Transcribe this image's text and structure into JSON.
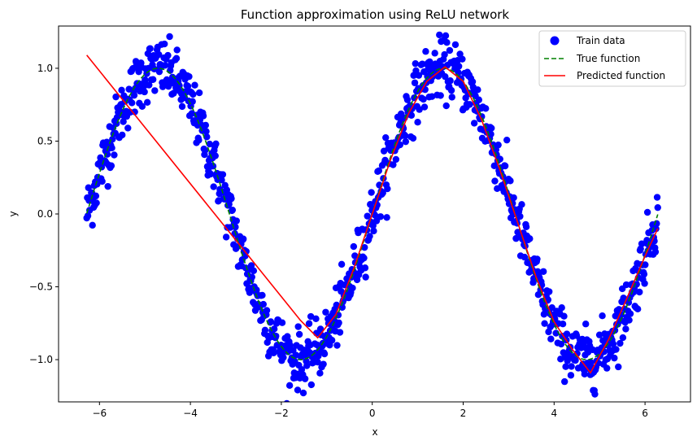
{
  "chart_data": {
    "type": "scatter",
    "title": "Function approximation using ReLU network",
    "xlabel": "x",
    "ylabel": "y",
    "xlim": [
      -6.9,
      7.0
    ],
    "ylim": [
      -1.29,
      1.29
    ],
    "xticks": [
      -6,
      -4,
      -2,
      0,
      2,
      4,
      6
    ],
    "xtick_labels": [
      "−6",
      "−4",
      "−2",
      "0",
      "2",
      "4",
      "6"
    ],
    "yticks": [
      -1.0,
      -0.5,
      0.0,
      0.5,
      1.0
    ],
    "ytick_labels": [
      "−1.0",
      "−0.5",
      "0.0",
      "0.5",
      "1.0"
    ],
    "grid": false,
    "legend_position": "top-right",
    "colors": {
      "train": "#0000ff",
      "true": "#008000",
      "pred": "#ff0000"
    },
    "series": [
      {
        "name": "Train data",
        "kind": "scatter",
        "x_range": [
          -6.28,
          6.28
        ],
        "true_function": "sin(x)",
        "noise_amplitude": 0.1,
        "count": 1000
      },
      {
        "name": "True function",
        "kind": "dashed-line",
        "function": "sin(x)",
        "x_range": [
          -6.28,
          6.28
        ]
      },
      {
        "name": "Predicted function",
        "kind": "line",
        "x": [
          -6.28,
          -1.58,
          -1.2,
          -0.8,
          -0.4,
          0.0,
          0.4,
          0.8,
          1.2,
          1.6,
          2.0,
          2.4,
          2.8,
          3.2,
          3.6,
          4.0,
          4.4,
          4.8,
          5.2,
          5.6,
          6.0,
          6.28
        ],
        "y": [
          1.09,
          -0.73,
          -0.85,
          -0.69,
          -0.37,
          0.0,
          0.37,
          0.69,
          0.91,
          1.01,
          0.91,
          0.65,
          0.31,
          -0.06,
          -0.43,
          -0.74,
          -0.93,
          -1.09,
          -0.86,
          -0.58,
          -0.29,
          -0.1
        ]
      }
    ]
  }
}
